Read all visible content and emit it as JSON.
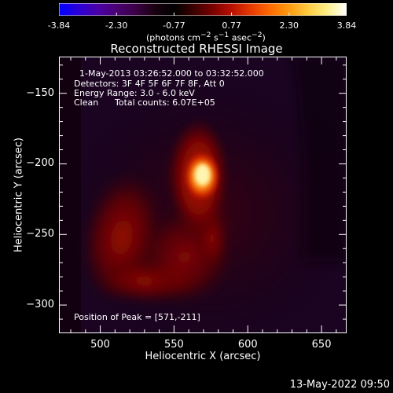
{
  "colorbar": {
    "tick_labels": [
      "-3.84",
      "-2.30",
      "-0.77",
      "0.77",
      "2.30",
      "3.84"
    ],
    "unit_label_html": "(photons cm<sup>−2</sup> s<sup>−1</sup> asec<sup>−2</sup>)",
    "gradient_colors": [
      "#0000ff",
      "#2a00d8",
      "#4a00a8",
      "#4a0073",
      "#3b0045",
      "#1a0010",
      "#000000",
      "#3a0000",
      "#7a0000",
      "#b81000",
      "#e83a00",
      "#ff6a00",
      "#ff9a10",
      "#ffcc40",
      "#ffef8a",
      "#ffffff"
    ]
  },
  "plot": {
    "title": "Reconstructed RHESSI Image",
    "x_label": "Heliocentric X (arcsec)",
    "y_label": "Heliocentric Y (arcsec)",
    "x_ticks": [
      "500",
      "550",
      "600",
      "650"
    ],
    "y_ticks": [
      "-150",
      "-200",
      "-250",
      "-300"
    ],
    "x_range": [
      472,
      667
    ],
    "y_range": [
      -320,
      -124
    ],
    "peak_color": "#fff5b0"
  },
  "annotations": {
    "time_range": "1-May-2013 03:26:52.000 to 03:32:52.000",
    "detectors": "Detectors: 3F 4F 5F 6F 7F 8F, Att 0",
    "energy": "Energy Range: 3.0 - 6.0 keV",
    "algorithm": "Clean",
    "counts": "Total counts: 6.07E+05",
    "peak": "Position of Peak = [571,-211]"
  },
  "footer": {
    "timestamp": "13-May-2022 09:50"
  }
}
